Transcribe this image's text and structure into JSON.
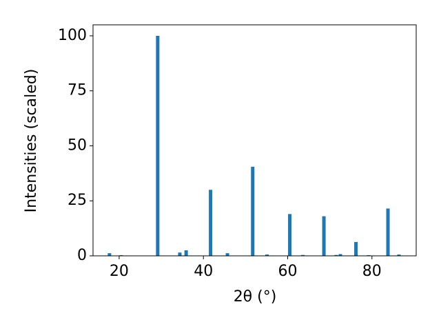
{
  "chart_data": {
    "type": "bar",
    "xlabel": "2θ (°)",
    "ylabel": "Intensities (scaled)",
    "x": [
      17.7,
      20.5,
      29.15,
      34.4,
      35.9,
      41.7,
      45.7,
      51.7,
      55.1,
      60.5,
      63.6,
      68.6,
      71.5,
      72.5,
      76.2,
      79.2,
      83.8,
      86.4
    ],
    "values": [
      1.2,
      0.3,
      100,
      1.5,
      2.5,
      30,
      1.2,
      40.5,
      0.6,
      19,
      0.4,
      18,
      0.4,
      0.8,
      6.3,
      0.3,
      21.5,
      0.6
    ],
    "color": "#1f77b4",
    "xlim": [
      13.8,
      90.5
    ],
    "ylim": [
      0,
      105
    ],
    "xticks": [
      20,
      40,
      60,
      80
    ],
    "yticks": [
      0,
      25,
      50,
      75,
      100
    ],
    "grid": false
  }
}
